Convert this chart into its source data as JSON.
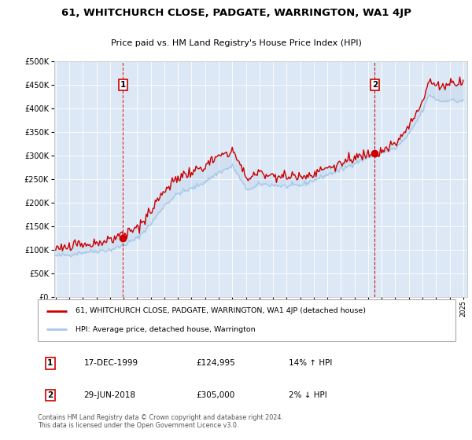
{
  "title": "61, WHITCHURCH CLOSE, PADGATE, WARRINGTON, WA1 4JP",
  "subtitle": "Price paid vs. HM Land Registry's House Price Index (HPI)",
  "hpi_line_color": "#a8c8e8",
  "price_line_color": "#cc0000",
  "marker_color": "#cc0000",
  "vline_color": "#cc0000",
  "plot_bg_color": "#dce8f5",
  "ylim": [
    0,
    500000
  ],
  "yticks": [
    0,
    50000,
    100000,
    150000,
    200000,
    250000,
    300000,
    350000,
    400000,
    450000,
    500000
  ],
  "sale1_date": 1999.96,
  "sale1_price": 124995,
  "sale2_date": 2018.49,
  "sale2_price": 305000,
  "legend_line1": "61, WHITCHURCH CLOSE, PADGATE, WARRINGTON, WA1 4JP (detached house)",
  "legend_line2": "HPI: Average price, detached house, Warrington",
  "note1_date": "17-DEC-1999",
  "note1_price": "£124,995",
  "note1_hpi": "14% ↑ HPI",
  "note2_date": "29-JUN-2018",
  "note2_price": "£305,000",
  "note2_hpi": "2% ↓ HPI",
  "footer": "Contains HM Land Registry data © Crown copyright and database right 2024.\nThis data is licensed under the Open Government Licence v3.0."
}
